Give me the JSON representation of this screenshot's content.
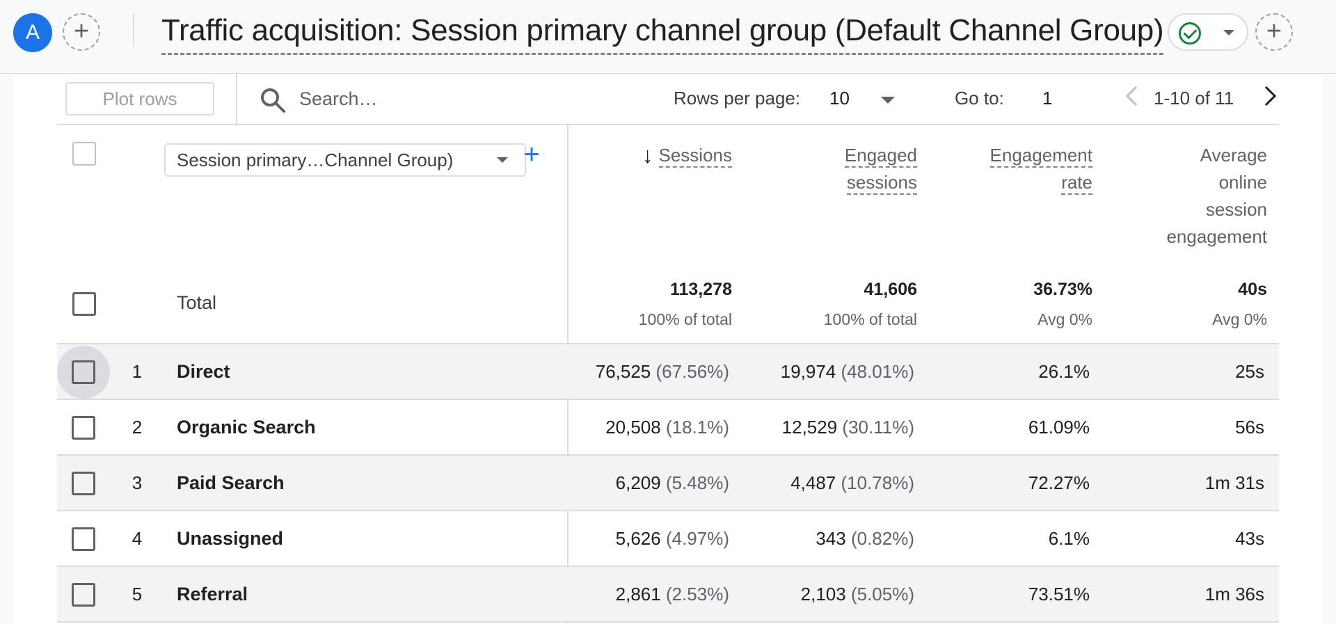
{
  "header": {
    "avatar_letter": "A",
    "title": "Traffic acquisition: Session primary channel group (Default Channel Group)"
  },
  "toolbar": {
    "plot_rows_label": "Plot rows",
    "search_placeholder": "Search…",
    "rows_per_page_label": "Rows per page:",
    "rows_per_page_value": "10",
    "goto_label": "Go to:",
    "goto_value": "1",
    "pagination_text": "1-10 of 11"
  },
  "table": {
    "dimension_select": "Session primary…Channel Group)",
    "columns": {
      "sessions": "Sessions",
      "engaged_sessions_1": "Engaged",
      "engaged_sessions_2": "sessions",
      "engagement_rate_1": "Engagement",
      "engagement_rate_2": "rate",
      "avg_1": "Average",
      "avg_2": "online",
      "avg_3": "session",
      "avg_4": "engagement"
    },
    "total": {
      "label": "Total",
      "sessions": "113,278",
      "sessions_sub": "100% of total",
      "engaged": "41,606",
      "engaged_sub": "100% of total",
      "rate": "36.73%",
      "rate_sub": "Avg 0%",
      "avg": "40s",
      "avg_sub": "Avg 0%"
    },
    "rows": [
      {
        "index": "1",
        "name": "Direct",
        "sessions": "76,525",
        "sessions_pct": "(67.56%)",
        "engaged": "19,974",
        "engaged_pct": "(48.01%)",
        "rate": "26.1%",
        "avg": "25s"
      },
      {
        "index": "2",
        "name": "Organic Search",
        "sessions": "20,508",
        "sessions_pct": "(18.1%)",
        "engaged": "12,529",
        "engaged_pct": "(30.11%)",
        "rate": "61.09%",
        "avg": "56s"
      },
      {
        "index": "3",
        "name": "Paid Search",
        "sessions": "6,209",
        "sessions_pct": "(5.48%)",
        "engaged": "4,487",
        "engaged_pct": "(10.78%)",
        "rate": "72.27%",
        "avg": "1m 31s"
      },
      {
        "index": "4",
        "name": "Unassigned",
        "sessions": "5,626",
        "sessions_pct": "(4.97%)",
        "engaged": "343",
        "engaged_pct": "(0.82%)",
        "rate": "6.1%",
        "avg": "43s"
      },
      {
        "index": "5",
        "name": "Referral",
        "sessions": "2,861",
        "sessions_pct": "(2.53%)",
        "engaged": "2,103",
        "engaged_pct": "(5.05%)",
        "rate": "73.51%",
        "avg": "1m 36s"
      }
    ]
  },
  "icons": {
    "status": "check-circle-icon",
    "add": "plus-icon",
    "search": "search-icon",
    "sort": "arrow-down-icon"
  },
  "colors": {
    "accent": "#1a73e8",
    "success": "#188038",
    "row_shade": "#f1f3f4",
    "border": "#dadce0"
  }
}
